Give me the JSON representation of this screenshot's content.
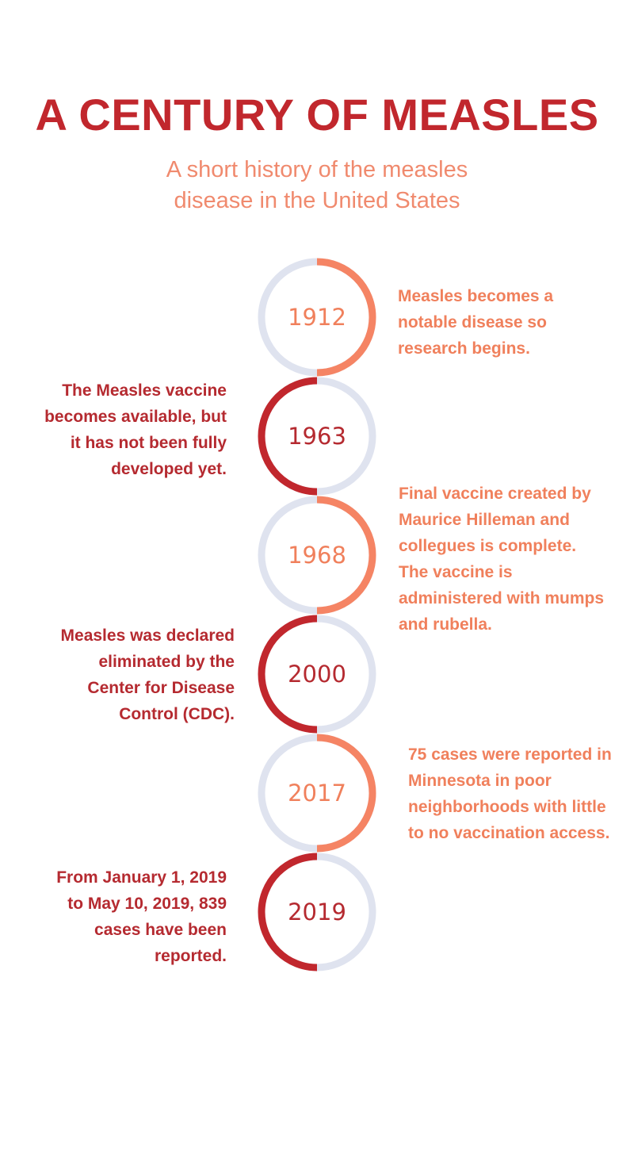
{
  "header": {
    "title": "A CENTURY OF MEASLES",
    "subtitle": "A short history of the measles disease in the United States"
  },
  "colors": {
    "light_accent": "#f58464",
    "dark_accent": "#c1272d",
    "ring_track": "#dfe3ef",
    "title": "#c1272d",
    "subtitle": "#f08a6e"
  },
  "timeline": [
    {
      "year": "1912",
      "text": "Measles becomes a notable disease so research begins."
    },
    {
      "year": "1963",
      "text": "The Measles vaccine becomes available, but it has not been fully developed yet."
    },
    {
      "year": "1968",
      "text": "Final vaccine created by Maurice Hilleman and collegues is complete. The vaccine is administered with mumps and rubella."
    },
    {
      "year": "2000",
      "text": "Measles was declared eliminated by the Center for Disease Control (CDC)."
    },
    {
      "year": "2017",
      "text": "75 cases were reported in Minnesota in poor neighborhoods with little to no vaccination access."
    },
    {
      "year": "2019",
      "text": "From January 1, 2019 to May 10, 2019, 839 cases have been reported."
    }
  ]
}
